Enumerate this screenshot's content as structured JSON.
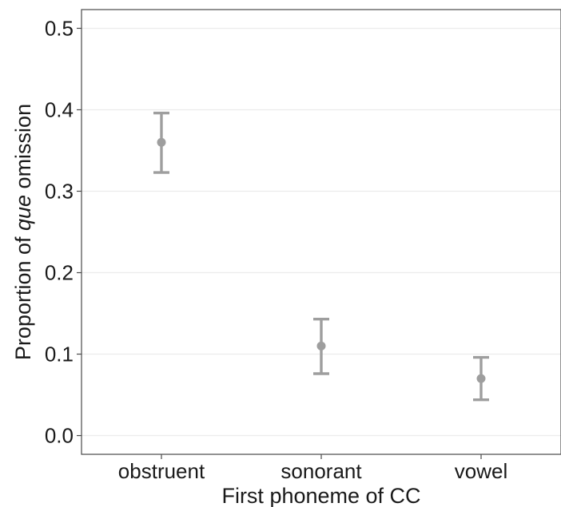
{
  "chart_data": {
    "type": "scatter",
    "subtype": "pointrange",
    "categories": [
      "obstruent",
      "sonorant",
      "vowel"
    ],
    "series": [
      {
        "values": [
          0.36,
          0.11,
          0.07
        ],
        "lower": [
          0.323,
          0.076,
          0.044
        ],
        "upper": [
          0.396,
          0.143,
          0.096
        ],
        "color": "#9e9e9e"
      }
    ],
    "xlabel": "First phoneme of CC",
    "ylabel": {
      "before": "Proportion of ",
      "italic": "que",
      "after": " omission"
    },
    "ylim": [
      -0.023,
      0.523
    ],
    "yticks": [
      0.0,
      0.1,
      0.2,
      0.3,
      0.4,
      0.5
    ],
    "ytick_labels": [
      "0.0",
      "0.1",
      "0.2",
      "0.3",
      "0.4",
      "0.5"
    ],
    "grid": true,
    "legend": "none"
  }
}
